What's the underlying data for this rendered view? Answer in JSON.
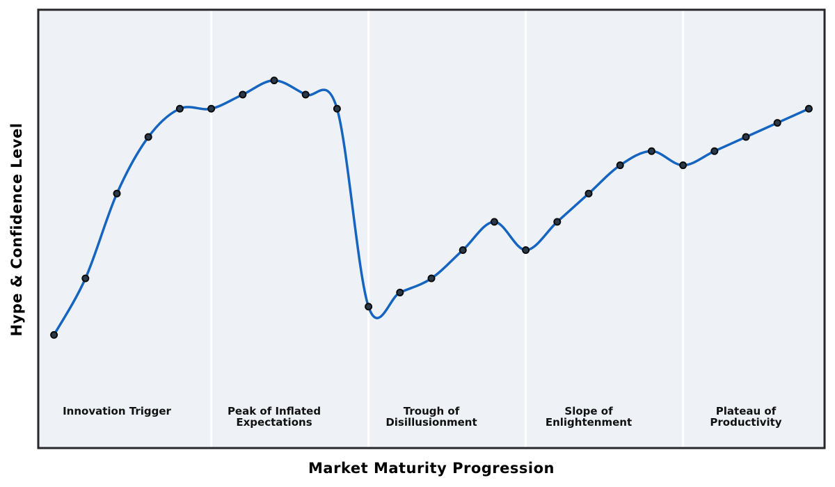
{
  "chart_data": {
    "type": "line",
    "title": "",
    "xlabel": "Market Maturity Progression",
    "ylabel": "Hype & Confidence Level",
    "x": [
      1,
      2,
      3,
      4,
      5,
      6,
      7,
      8,
      9,
      10,
      11,
      12,
      13,
      14,
      15,
      16,
      17,
      18,
      19,
      20,
      21,
      22,
      23,
      24,
      25
    ],
    "y": [
      8,
      12,
      18,
      22,
      24,
      24,
      25,
      26,
      25,
      24,
      10,
      11,
      12,
      14,
      16,
      14,
      16,
      18,
      20,
      21,
      20,
      21,
      22,
      23,
      24
    ],
    "xlim": [
      0.5,
      25.5
    ],
    "ylim": [
      0,
      31
    ],
    "grid": false,
    "legend": null,
    "line_style": "smooth-spline",
    "phase_separators_x": [
      6,
      11,
      16,
      21
    ],
    "phase_label_y": 2.95,
    "phases": [
      {
        "label": "Innovation Trigger",
        "lines": [
          "Innovation Trigger"
        ],
        "x": 3
      },
      {
        "label": "Peak of Inflated Expectations",
        "lines": [
          "Peak of Inflated",
          "Expectations"
        ],
        "x": 8
      },
      {
        "label": "Trough of Disillusionment",
        "lines": [
          "Trough of",
          "Disillusionment"
        ],
        "x": 13
      },
      {
        "label": "Slope of Enlightenment",
        "lines": [
          "Slope of",
          "Enlightenment"
        ],
        "x": 18
      },
      {
        "label": "Plateau of Productivity",
        "lines": [
          "Plateau of",
          "Productivity"
        ],
        "x": 23
      }
    ],
    "colors": {
      "line": "#1565c0",
      "marker_fill": "#2b3a4a",
      "marker_edge": "#0b0b0b",
      "plot_bg": "#eef2f7",
      "fig_bg": "#ffffff",
      "spine": "#27272b",
      "separator": "#ffffff",
      "phase_label_text": "#111111"
    }
  }
}
